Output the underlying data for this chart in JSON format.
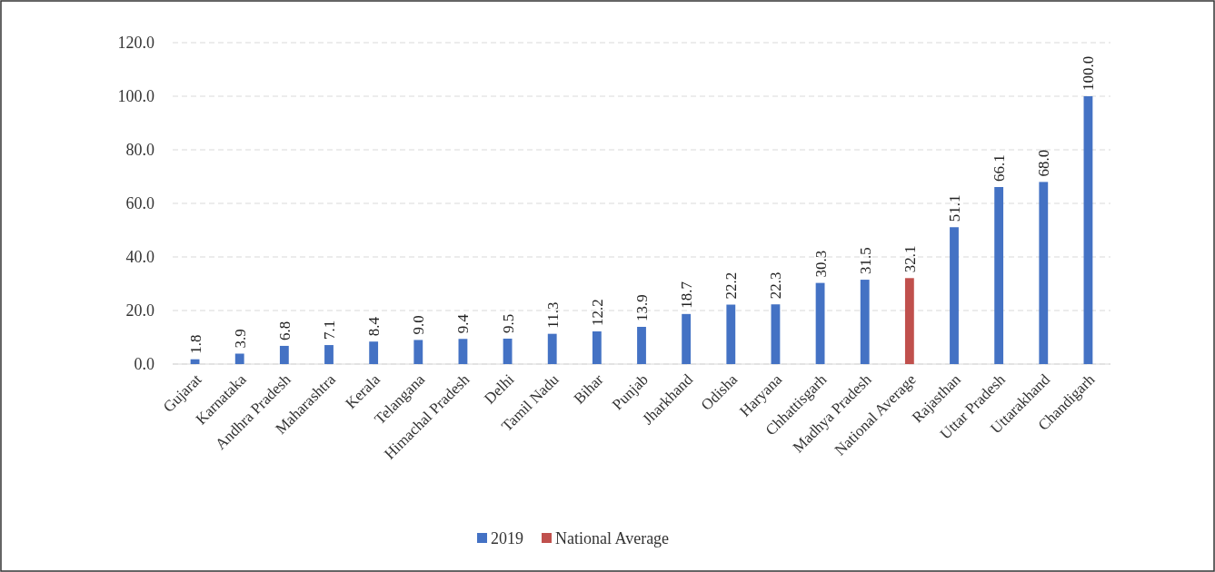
{
  "chart_data": {
    "type": "bar",
    "categories": [
      "Gujarat",
      "Karnataka",
      "Andhra Pradesh",
      "Maharashtra",
      "Kerala",
      "Telangana",
      "Himachal Pradesh",
      "Delhi",
      "Tamil Nadu",
      "Bihar",
      "Punjab",
      "Jharkhand",
      "Odisha",
      "Haryana",
      "Chhattisgarh",
      "Madhya Pradesh",
      "National Average",
      "Rajasthan",
      "Uttar Pradesh",
      "Uttarakhand",
      "Chandigarh"
    ],
    "series": [
      {
        "name": "2019",
        "color": "#4472c4",
        "values": [
          1.8,
          3.9,
          6.8,
          7.1,
          8.4,
          9.0,
          9.4,
          9.5,
          11.3,
          12.2,
          13.9,
          18.7,
          22.2,
          22.3,
          30.3,
          31.5,
          null,
          51.1,
          66.1,
          68.0,
          100.0
        ],
        "value_labels": [
          "1.8",
          "3.9",
          "6.8",
          "7.1",
          "8.4",
          "9.0",
          "9.4",
          "9.5",
          "11.3",
          "12.2",
          "13.9",
          "18.7",
          "22.2",
          "22.3",
          "30.3",
          "31.5",
          null,
          "51.1",
          "66.1",
          "68.0",
          "100.0"
        ]
      },
      {
        "name": "National Average",
        "color": "#c0504d",
        "values": [
          null,
          null,
          null,
          null,
          null,
          null,
          null,
          null,
          null,
          null,
          null,
          null,
          null,
          null,
          null,
          null,
          32.1,
          null,
          null,
          null,
          null
        ],
        "value_labels": [
          null,
          null,
          null,
          null,
          null,
          null,
          null,
          null,
          null,
          null,
          null,
          null,
          null,
          null,
          null,
          null,
          "32.1",
          null,
          null,
          null,
          null
        ]
      }
    ],
    "ylim": [
      0,
      120
    ],
    "yticks": [
      {
        "value": 0,
        "label": "0.0"
      },
      {
        "value": 20,
        "label": "20.0"
      },
      {
        "value": 40,
        "label": "40.0"
      },
      {
        "value": 60,
        "label": "60.0"
      },
      {
        "value": 80,
        "label": "80.0"
      },
      {
        "value": 100,
        "label": "100.0"
      },
      {
        "value": 120,
        "label": "120.0"
      }
    ],
    "grid": "y",
    "legend": "bottom"
  }
}
